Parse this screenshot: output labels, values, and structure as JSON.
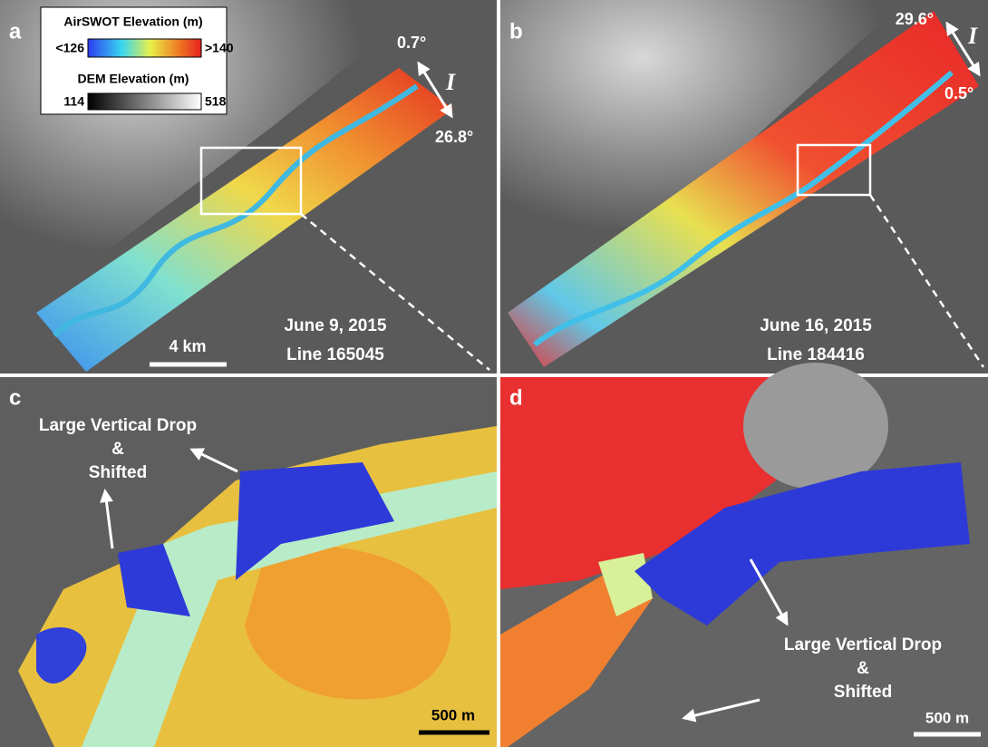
{
  "panel_a": {
    "label": "a",
    "legend": {
      "airswot_title": "AirSWOT Elevation (m)",
      "airswot_min": "<126",
      "airswot_max": ">140",
      "dem_title": "DEM Elevation (m)",
      "dem_min": "114",
      "dem_max": "518"
    },
    "angle_top": "0.7°",
    "angle_bottom": "26.8°",
    "incidence": "I",
    "date": "June 9, 2015",
    "line": "Line 165045",
    "scale": "4 km"
  },
  "panel_b": {
    "label": "b",
    "angle_top": "29.6°",
    "angle_bottom": "0.5°",
    "incidence": "I",
    "date": "June 16, 2015",
    "line": "Line 184416"
  },
  "panel_c": {
    "label": "c",
    "annotation": [
      "Large Vertical Drop",
      "&",
      "Shifted"
    ],
    "scale": "500 m"
  },
  "panel_d": {
    "label": "d",
    "annotation": [
      "Large Vertical Drop",
      "&",
      "Shifted"
    ],
    "scale": "500 m"
  }
}
